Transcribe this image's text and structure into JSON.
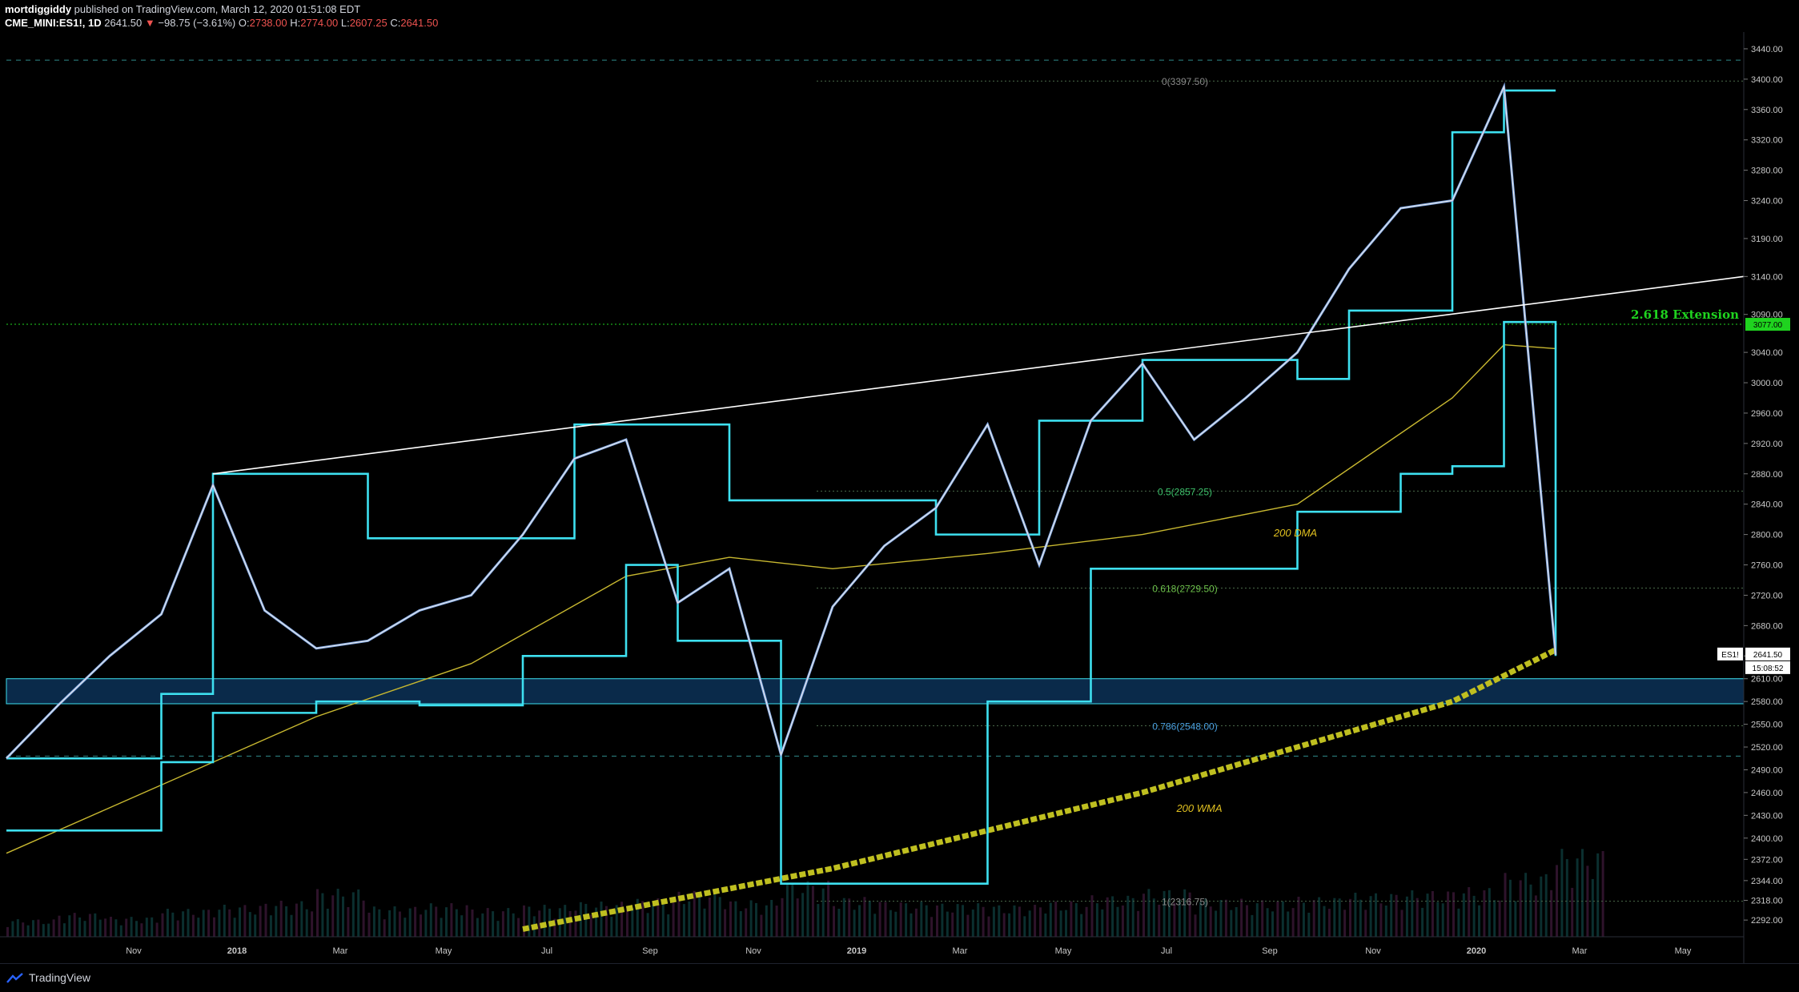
{
  "header": {
    "author": "mortdiggiddy",
    "published": "published on TradingView.com, March 12, 2020 01:51:08 EDT",
    "symbol": "CME_MINI:ES1!, 1D",
    "last": "2641.50",
    "change": "−98.75 (−3.61%)",
    "open_label": "O:",
    "open": "2738.00",
    "high_label": "H:",
    "high": "2774.00",
    "low_label": "L:",
    "low": "2607.25",
    "close_label": "C:",
    "close": "2641.50"
  },
  "footer": {
    "brand": "TradingView",
    "logo_icon": "tradingview-logo-icon"
  },
  "colors": {
    "background": "#000000",
    "candle": "#e6e6e6",
    "ma_cyan": "#3ee0f0",
    "dma_yellow": "#c8b830",
    "wma_yellow": "#bfbf20",
    "trendline": "#ffffff",
    "fib_line": "#4a6a4a",
    "zone_fill": "#0a2a4a",
    "extension_green": "#1fd31f",
    "volume": "#0e3b3b"
  },
  "chart_data": {
    "type": "line",
    "title": "",
    "instrument": "CME_MINI:ES1!",
    "timeframe": "1D",
    "x_tick_labels": [
      "Nov",
      "2018",
      "Mar",
      "May",
      "Jul",
      "Sep",
      "Nov",
      "2019",
      "Mar",
      "May",
      "Jul",
      "Sep",
      "Nov",
      "2020",
      "Mar",
      "May"
    ],
    "y_tick_labels": [
      3440,
      3400,
      3360,
      3320,
      3280,
      3240,
      3190,
      3140,
      3090,
      3040,
      3000,
      2960,
      2920,
      2880,
      2840,
      2800,
      2760,
      2720,
      2680,
      2640,
      2610,
      2580,
      2550,
      2520,
      2490,
      2460,
      2430,
      2400,
      2372,
      2344,
      2318,
      2292
    ],
    "ylim": [
      2270,
      3460
    ],
    "price_axis_labels": {
      "symbol_tag": "ES1!",
      "last_price": "2641.50",
      "countdown": "15:08:52",
      "level_tag": "3077.00"
    },
    "price_series": {
      "name": "",
      "months": [
        "2017-09",
        "2017-10",
        "2017-11",
        "2017-12",
        "2018-01",
        "2018-02",
        "2018-03",
        "2018-04",
        "2018-05",
        "2018-06",
        "2018-07",
        "2018-08",
        "2018-09",
        "2018-10",
        "2018-11",
        "2018-12",
        "2019-01",
        "2019-02",
        "2019-03",
        "2019-04",
        "2019-05",
        "2019-06",
        "2019-07",
        "2019-08",
        "2019-09",
        "2019-10",
        "2019-11",
        "2019-12",
        "2020-01",
        "2020-02",
        "2020-03"
      ],
      "close": [
        2505,
        2575,
        2640,
        2695,
        2865,
        2700,
        2650,
        2660,
        2700,
        2720,
        2800,
        2900,
        2925,
        2710,
        2755,
        2510,
        2705,
        2785,
        2835,
        2945,
        2760,
        2950,
        3025,
        2925,
        2980,
        3040,
        3150,
        3230,
        3240,
        3390,
        2641.5
      ]
    },
    "moving_averages": [
      {
        "label": "200 DMA",
        "months": [
          "2017-09",
          "2018-01",
          "2018-03",
          "2018-06",
          "2018-09",
          "2018-11",
          "2019-01",
          "2019-04",
          "2019-07",
          "2019-10",
          "2020-01",
          "2020-02",
          "2020-03"
        ],
        "values": [
          2380,
          2500,
          2560,
          2630,
          2745,
          2770,
          2755,
          2775,
          2800,
          2840,
          2980,
          3050,
          3045
        ]
      },
      {
        "label": "200 WMA",
        "months": [
          "2018-07",
          "2019-01",
          "2019-07",
          "2020-01",
          "2020-03"
        ],
        "values": [
          2280,
          2360,
          2460,
          2580,
          2648
        ]
      }
    ],
    "channel_upper": {
      "months": [
        "2017-09",
        "2017-12",
        "2018-01",
        "2018-03",
        "2018-04",
        "2018-07",
        "2018-08",
        "2018-11",
        "2019-03",
        "2019-05",
        "2019-07",
        "2019-08",
        "2019-10",
        "2019-11",
        "2020-01",
        "2020-02",
        "2020-03"
      ],
      "values": [
        2505,
        2590,
        2880,
        2880,
        2795,
        2795,
        2945,
        2845,
        2800,
        2950,
        3030,
        3030,
        3005,
        3095,
        3330,
        3385,
        3385
      ]
    },
    "channel_lower": {
      "months": [
        "2017-09",
        "2017-12",
        "2018-01",
        "2018-03",
        "2018-05",
        "2018-07",
        "2018-09",
        "2018-10",
        "2018-12",
        "2019-03",
        "2019-04",
        "2019-06",
        "2019-08",
        "2019-10",
        "2019-12",
        "2020-01",
        "2020-02",
        "2020-03"
      ],
      "values": [
        2410,
        2500,
        2565,
        2580,
        2575,
        2640,
        2760,
        2660,
        2340,
        2340,
        2580,
        2755,
        2755,
        2830,
        2880,
        2890,
        3080,
        2640
      ]
    },
    "trendline": {
      "label": "",
      "points": [
        [
          "2018-01",
          2880
        ],
        [
          "2020-03",
          3140
        ]
      ]
    },
    "support_zone": {
      "low": 2577,
      "high": 2610
    },
    "dashed_levels": [
      3425,
      2508
    ],
    "extension": {
      "label": "2.618 Extension",
      "value": 3077
    },
    "fib_levels": [
      {
        "label": "0(3397.50)",
        "value": 3397.5
      },
      {
        "label": "0.5(2857.25)",
        "value": 2857.25
      },
      {
        "label": "0.618(2729.50)",
        "value": 2729.5
      },
      {
        "label": "0.786(2548.00)",
        "value": 2548.0
      },
      {
        "label": "1(2316.75)",
        "value": 2316.75
      }
    ],
    "volume_profile": [
      22,
      30,
      25,
      35,
      40,
      45,
      60,
      38,
      42,
      36,
      40,
      44,
      48,
      58,
      46,
      70,
      50,
      44,
      42,
      40,
      45,
      52,
      60,
      48,
      46,
      50,
      55,
      58,
      62,
      80,
      110
    ]
  }
}
